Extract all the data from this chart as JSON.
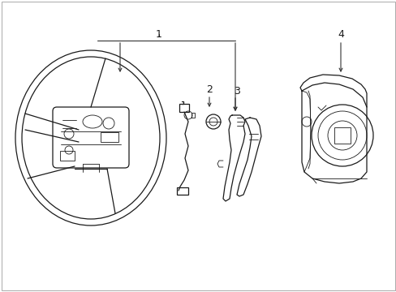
{
  "background_color": "#ffffff",
  "line_color": "#1a1a1a",
  "figsize": [
    4.89,
    3.6
  ],
  "dpi": 100,
  "border_color": "#aaaaaa"
}
